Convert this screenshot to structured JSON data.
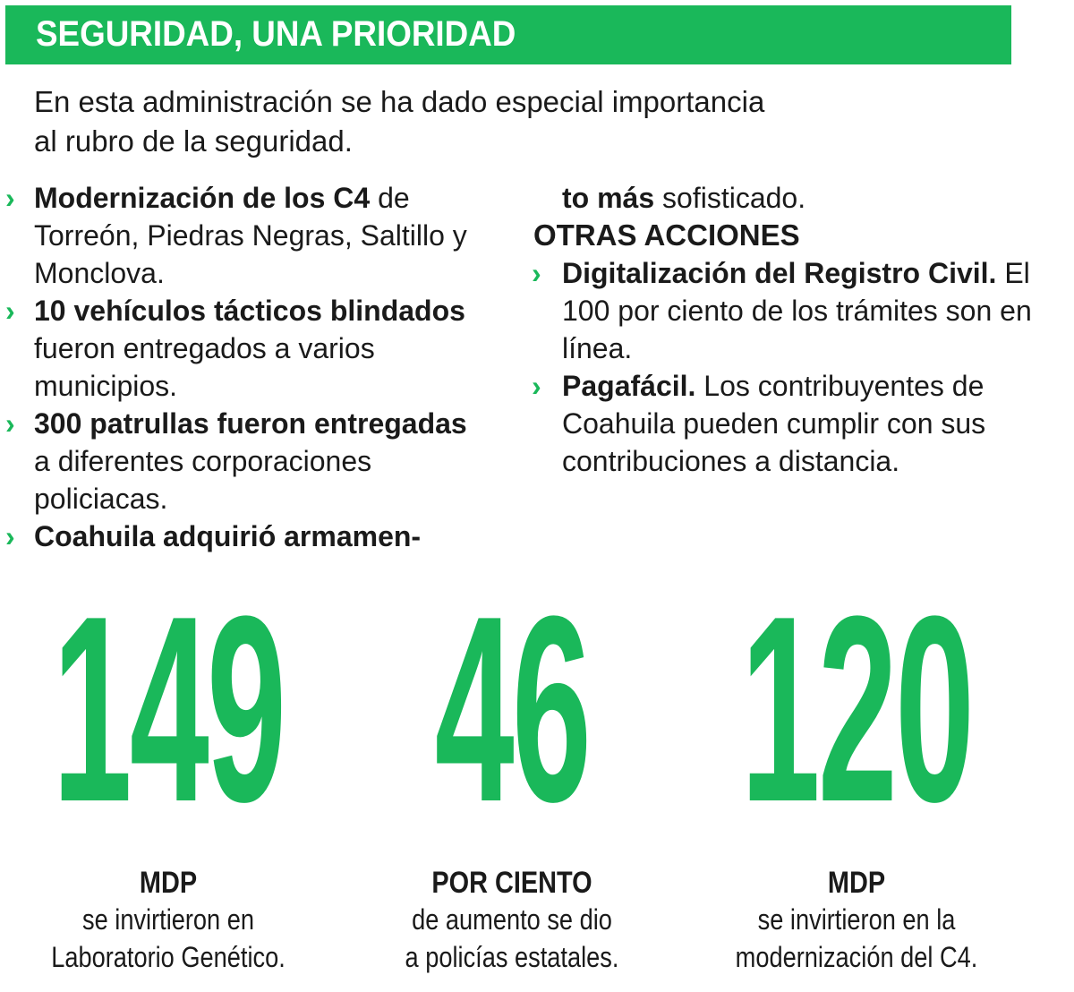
{
  "title": "SEGURIDAD, UNA PRIORIDAD",
  "intro_lines": [
    "En esta administración se ha dado especial importancia",
    "al rubro de la seguridad."
  ],
  "colors": {
    "accent": "#1ab85a",
    "text": "#1a1a1a"
  },
  "left_items": [
    {
      "bold": "Modernización de los C4",
      "text": " de Torreón, Piedras Negras, Saltillo y Monclova."
    },
    {
      "bold": "10 vehículos tácticos blindados",
      "text": " fueron entregados a varios municipios."
    },
    {
      "bold": "300 patrullas fueron entregadas",
      "text": " a diferentes corporaciones policiacas."
    },
    {
      "bold": "Coahuila adquirió armamen-",
      "text": ""
    }
  ],
  "continuation": {
    "bold": "to más",
    "text": " sofisticado."
  },
  "other_actions": {
    "heading": "OTRAS ACCIONES",
    "items": [
      {
        "bold": "Digitalización del Registro Civil.",
        "text": " El 100 por ciento de los trámites son en línea."
      },
      {
        "bold": "Pagafácil.",
        "text": " Los contribuyentes de Coahuila pueden cumplir con sus contribuciones a distancia."
      }
    ]
  },
  "stats": [
    {
      "value": "149",
      "unit": "MDP",
      "lines": [
        "se invirtieron en",
        "Laboratorio Genético."
      ]
    },
    {
      "value": "46",
      "unit": "POR CIENTO",
      "lines": [
        "de aumento se dio",
        "a policías estatales."
      ]
    },
    {
      "value": "120",
      "unit": "MDP",
      "lines": [
        "se invirtieron en la",
        "modernización del C4."
      ]
    }
  ],
  "icons": {
    "bullet": "chevron-right-icon"
  }
}
